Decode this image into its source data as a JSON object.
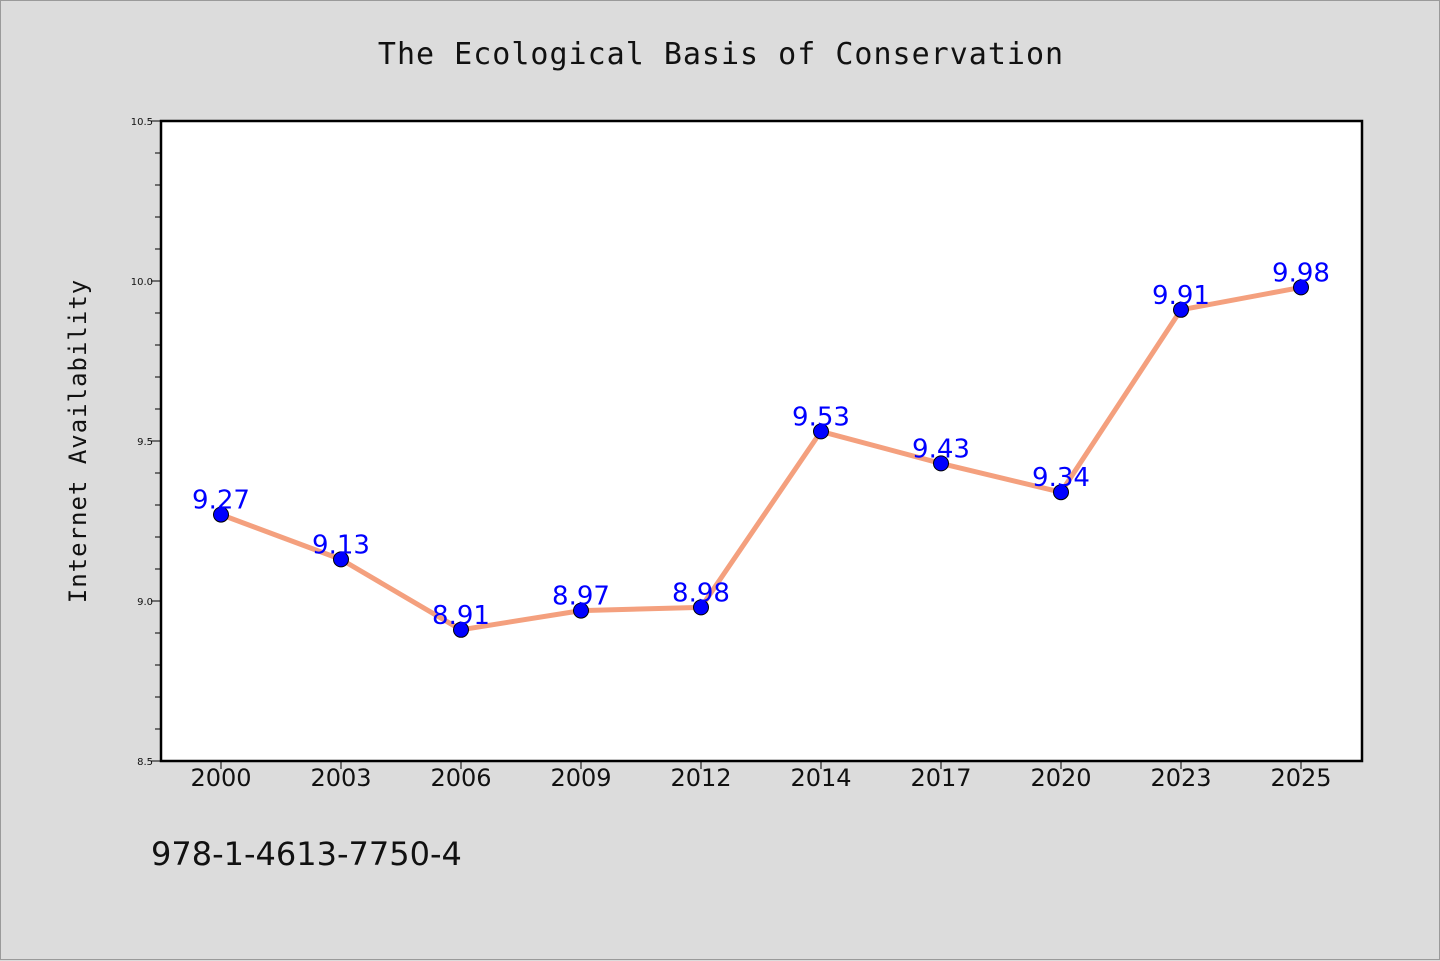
{
  "chart_data": {
    "type": "line",
    "title": "The Ecological Basis of Conservation",
    "xlabel": "",
    "ylabel": "Internet Availability",
    "categories": [
      "2000",
      "2003",
      "2006",
      "2009",
      "2012",
      "2014",
      "2017",
      "2020",
      "2023",
      "2025"
    ],
    "series": [
      {
        "values": [
          9.27,
          9.13,
          8.91,
          8.97,
          8.98,
          9.53,
          9.43,
          9.34,
          9.91,
          9.98
        ],
        "line_color": "#f4a07e",
        "marker_color": "#0000ff"
      }
    ],
    "data_labels": [
      "9.27",
      "9.13",
      "8.91",
      "8.97",
      "8.98",
      "9.53",
      "9.43",
      "9.34",
      "9.91",
      "9.98"
    ],
    "data_label_color": "#0000ff",
    "ylim": [
      8.5,
      10.5
    ],
    "yticks": [
      "8.5",
      "9.0",
      "9.5",
      "10.0",
      "10.5"
    ],
    "grid": false,
    "legend": "none"
  },
  "footer": {
    "isbn": "978-1-4613-7750-4"
  },
  "colors": {
    "background": "#dcdcdc",
    "plot_background": "#ffffff"
  }
}
